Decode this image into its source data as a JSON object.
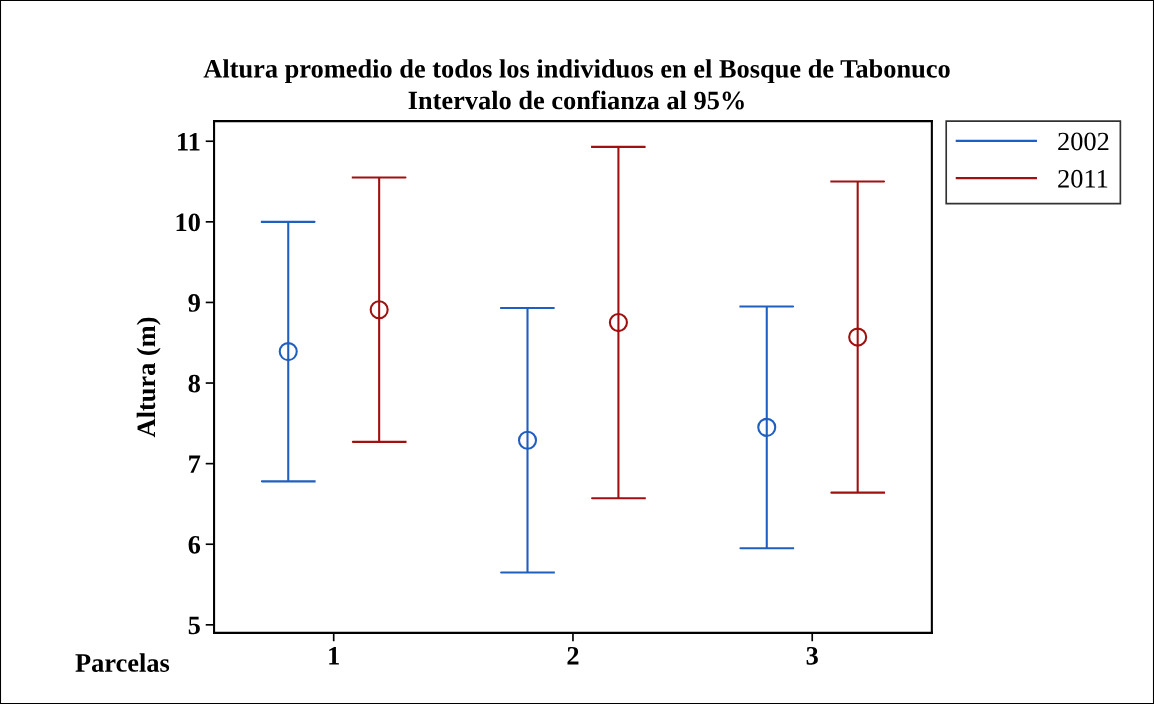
{
  "chart_data": {
    "type": "scatter",
    "title": "Altura promedio de todos los individuos en el Bosque de Tabonuco",
    "subtitle": "Intervalo de confianza al 95%",
    "xlabel": "Parcelas",
    "ylabel": "Altura (m)",
    "categories": [
      "1",
      "2",
      "3"
    ],
    "series": [
      {
        "name": "2002",
        "color": "#1f5fbf",
        "values": [
          8.39,
          7.29,
          7.45
        ],
        "errors": [
          1.61,
          1.64,
          1.5
        ]
      },
      {
        "name": "2011",
        "color": "#a01010",
        "values": [
          8.91,
          8.75,
          8.57
        ],
        "errors": [
          1.64,
          2.18,
          1.93
        ]
      }
    ],
    "ylim": [
      4.9,
      11.25
    ],
    "yticks": [
      5,
      6,
      7,
      8,
      9,
      10,
      11
    ],
    "marker": "circle",
    "legend": "top right",
    "grid": false
  }
}
